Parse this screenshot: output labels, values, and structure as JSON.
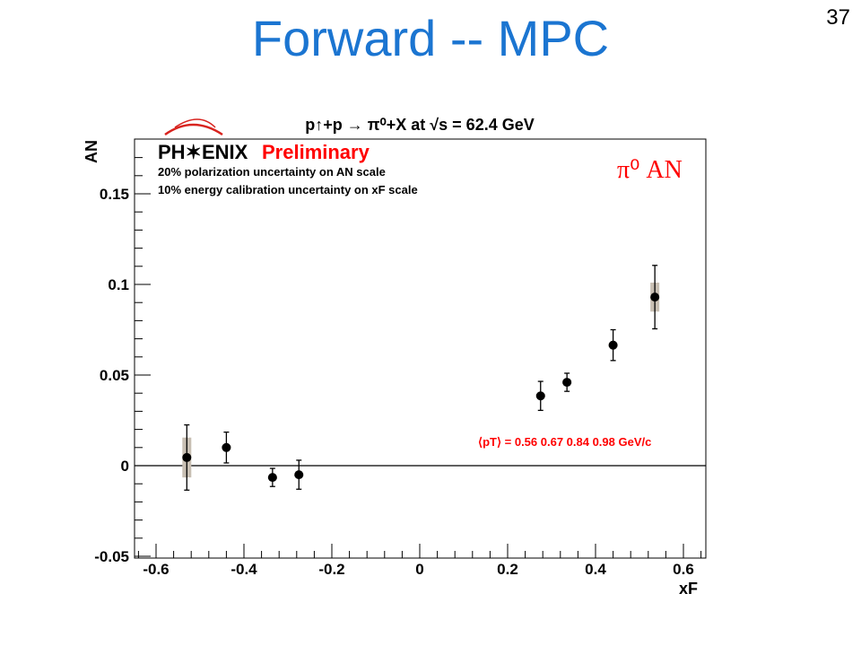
{
  "slide": {
    "title": "Forward -- MPC",
    "number": "37"
  },
  "chart_data": {
    "type": "scatter",
    "title": "p↑+p → π⁰+X at √s = 62.4 GeV",
    "xlabel": "xF",
    "ylabel": "AN",
    "xlim": [
      -0.65,
      0.65
    ],
    "ylim": [
      -0.05,
      0.18
    ],
    "x_ticks": [
      -0.6,
      -0.4,
      -0.2,
      0,
      0.2,
      0.4,
      0.6
    ],
    "x_tick_labels": [
      "-0.6",
      "-0.4",
      "-0.2",
      "0",
      "0.2",
      "0.4",
      "0.6"
    ],
    "y_ticks": [
      -0.05,
      0,
      0.05,
      0.1,
      0.15
    ],
    "y_tick_labels": [
      "-0.05",
      "0",
      "0.05",
      "0.1",
      "0.15"
    ],
    "grid": false,
    "points": [
      {
        "x": -0.53,
        "y": 0.0045,
        "err": 0.018,
        "sys": 0.011
      },
      {
        "x": -0.44,
        "y": 0.01,
        "err": 0.0085,
        "sys": 0.001
      },
      {
        "x": -0.335,
        "y": -0.0065,
        "err": 0.005,
        "sys": 0.001
      },
      {
        "x": -0.275,
        "y": -0.005,
        "err": 0.008,
        "sys": 0.001
      },
      {
        "x": 0.275,
        "y": 0.0385,
        "err": 0.008,
        "sys": 0.001
      },
      {
        "x": 0.335,
        "y": 0.046,
        "err": 0.005,
        "sys": 0.001
      },
      {
        "x": 0.44,
        "y": 0.0665,
        "err": 0.0085,
        "sys": 0.001
      },
      {
        "x": 0.535,
        "y": 0.093,
        "err": 0.0175,
        "sys": 0.008
      }
    ],
    "annotations": {
      "experiment": "PH✶ENIX",
      "preliminary": "Preliminary",
      "note1": "20% polarization uncertainty on AN scale",
      "note2": "10% energy calibration uncertainty on xF scale",
      "label": "π⁰ AN",
      "pt_values": "⟨pT⟩ = 0.56  0.67  0.84  0.98 GeV/c"
    },
    "colors": {
      "points": "#000000",
      "sys_band": "#c8bfb3",
      "label_red": "#ff0000",
      "title_blue": "#1b75d1"
    }
  }
}
